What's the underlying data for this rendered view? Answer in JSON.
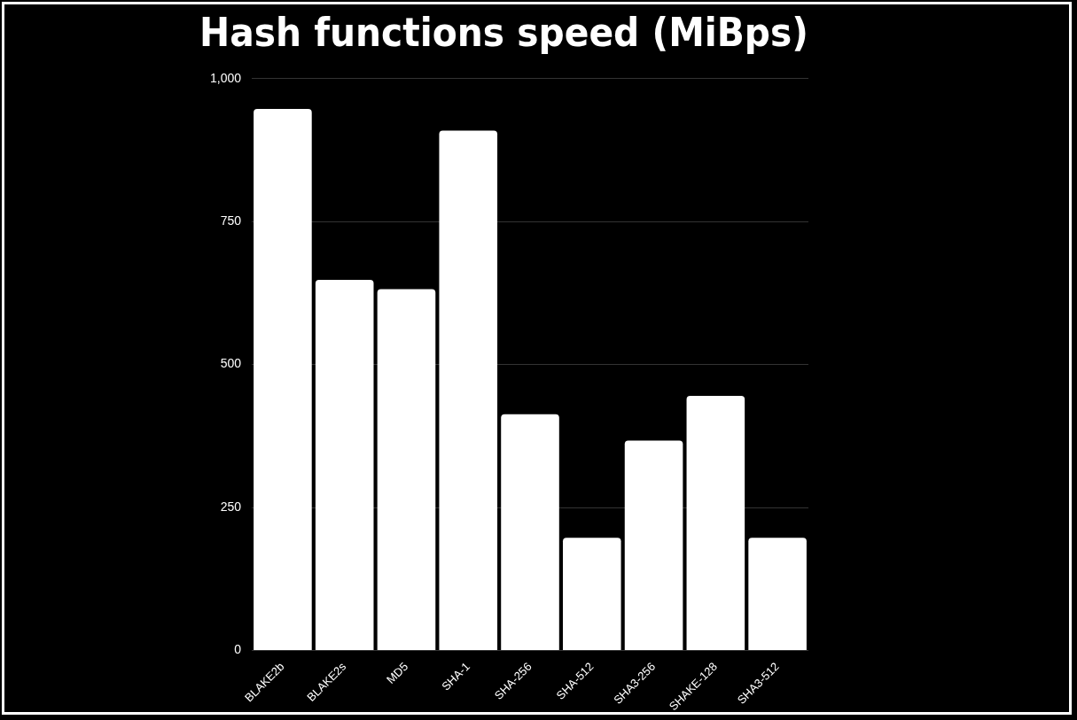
{
  "chart_data": {
    "type": "bar",
    "title": "Hash functions speed (MiBps)",
    "categories": [
      "BLAKE2b",
      "BLAKE2s",
      "MD5",
      "SHA-1",
      "SHA-256",
      "SHA-512",
      "SHA3-256",
      "SHAKE-128",
      "SHA3-512"
    ],
    "values": [
      947,
      648,
      632,
      909,
      413,
      197,
      367,
      445,
      197
    ],
    "color": "#ffffff",
    "ylim": [
      0,
      1000
    ],
    "yticks": [
      0,
      250,
      500,
      750,
      {
        "value": 1000,
        "label": "1,000"
      }
    ],
    "grid": "y",
    "legend": false
  }
}
